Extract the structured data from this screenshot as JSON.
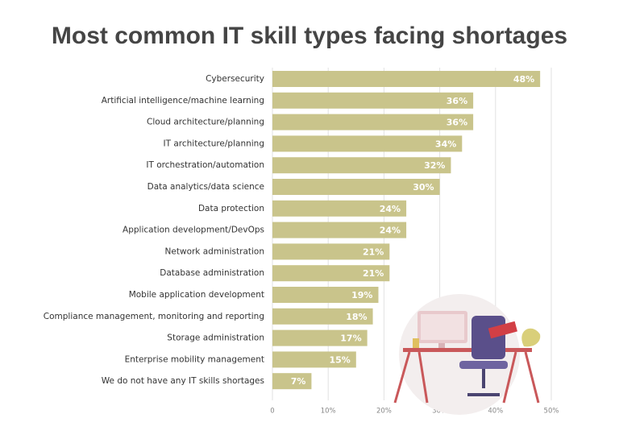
{
  "chart_data": {
    "type": "bar",
    "orientation": "horizontal",
    "title": "Most common IT skill types facing shortages",
    "categories": [
      "Cybersecurity",
      "Artificial intelligence/machine learning",
      "Cloud architecture/planning",
      "IT architecture/planning",
      "IT orchestration/automation",
      "Data analytics/data science",
      "Data protection",
      "Application development/DevOps",
      "Network administration",
      "Database administration",
      "Mobile application development",
      "Compliance management, monitoring and reporting",
      "Storage administration",
      "Enterprise mobility management",
      "We do not have any IT skills shortages"
    ],
    "values": [
      48,
      36,
      36,
      34,
      32,
      30,
      24,
      24,
      21,
      21,
      19,
      18,
      17,
      15,
      7
    ],
    "value_labels": [
      "48%",
      "36%",
      "36%",
      "34%",
      "32%",
      "30%",
      "24%",
      "24%",
      "21%",
      "21%",
      "19%",
      "18%",
      "17%",
      "15%",
      "7%"
    ],
    "color": "#c9c48b",
    "xlim": [
      0,
      50
    ],
    "xticks": [
      0,
      {
        "value": 10,
        "label": "10%"
      },
      {
        "value": 20,
        "label": "20%"
      },
      {
        "value": 30,
        "label": "30%"
      },
      {
        "value": 40,
        "label": "40%"
      },
      {
        "value": 50,
        "label": "50%"
      }
    ],
    "grid": true
  }
}
